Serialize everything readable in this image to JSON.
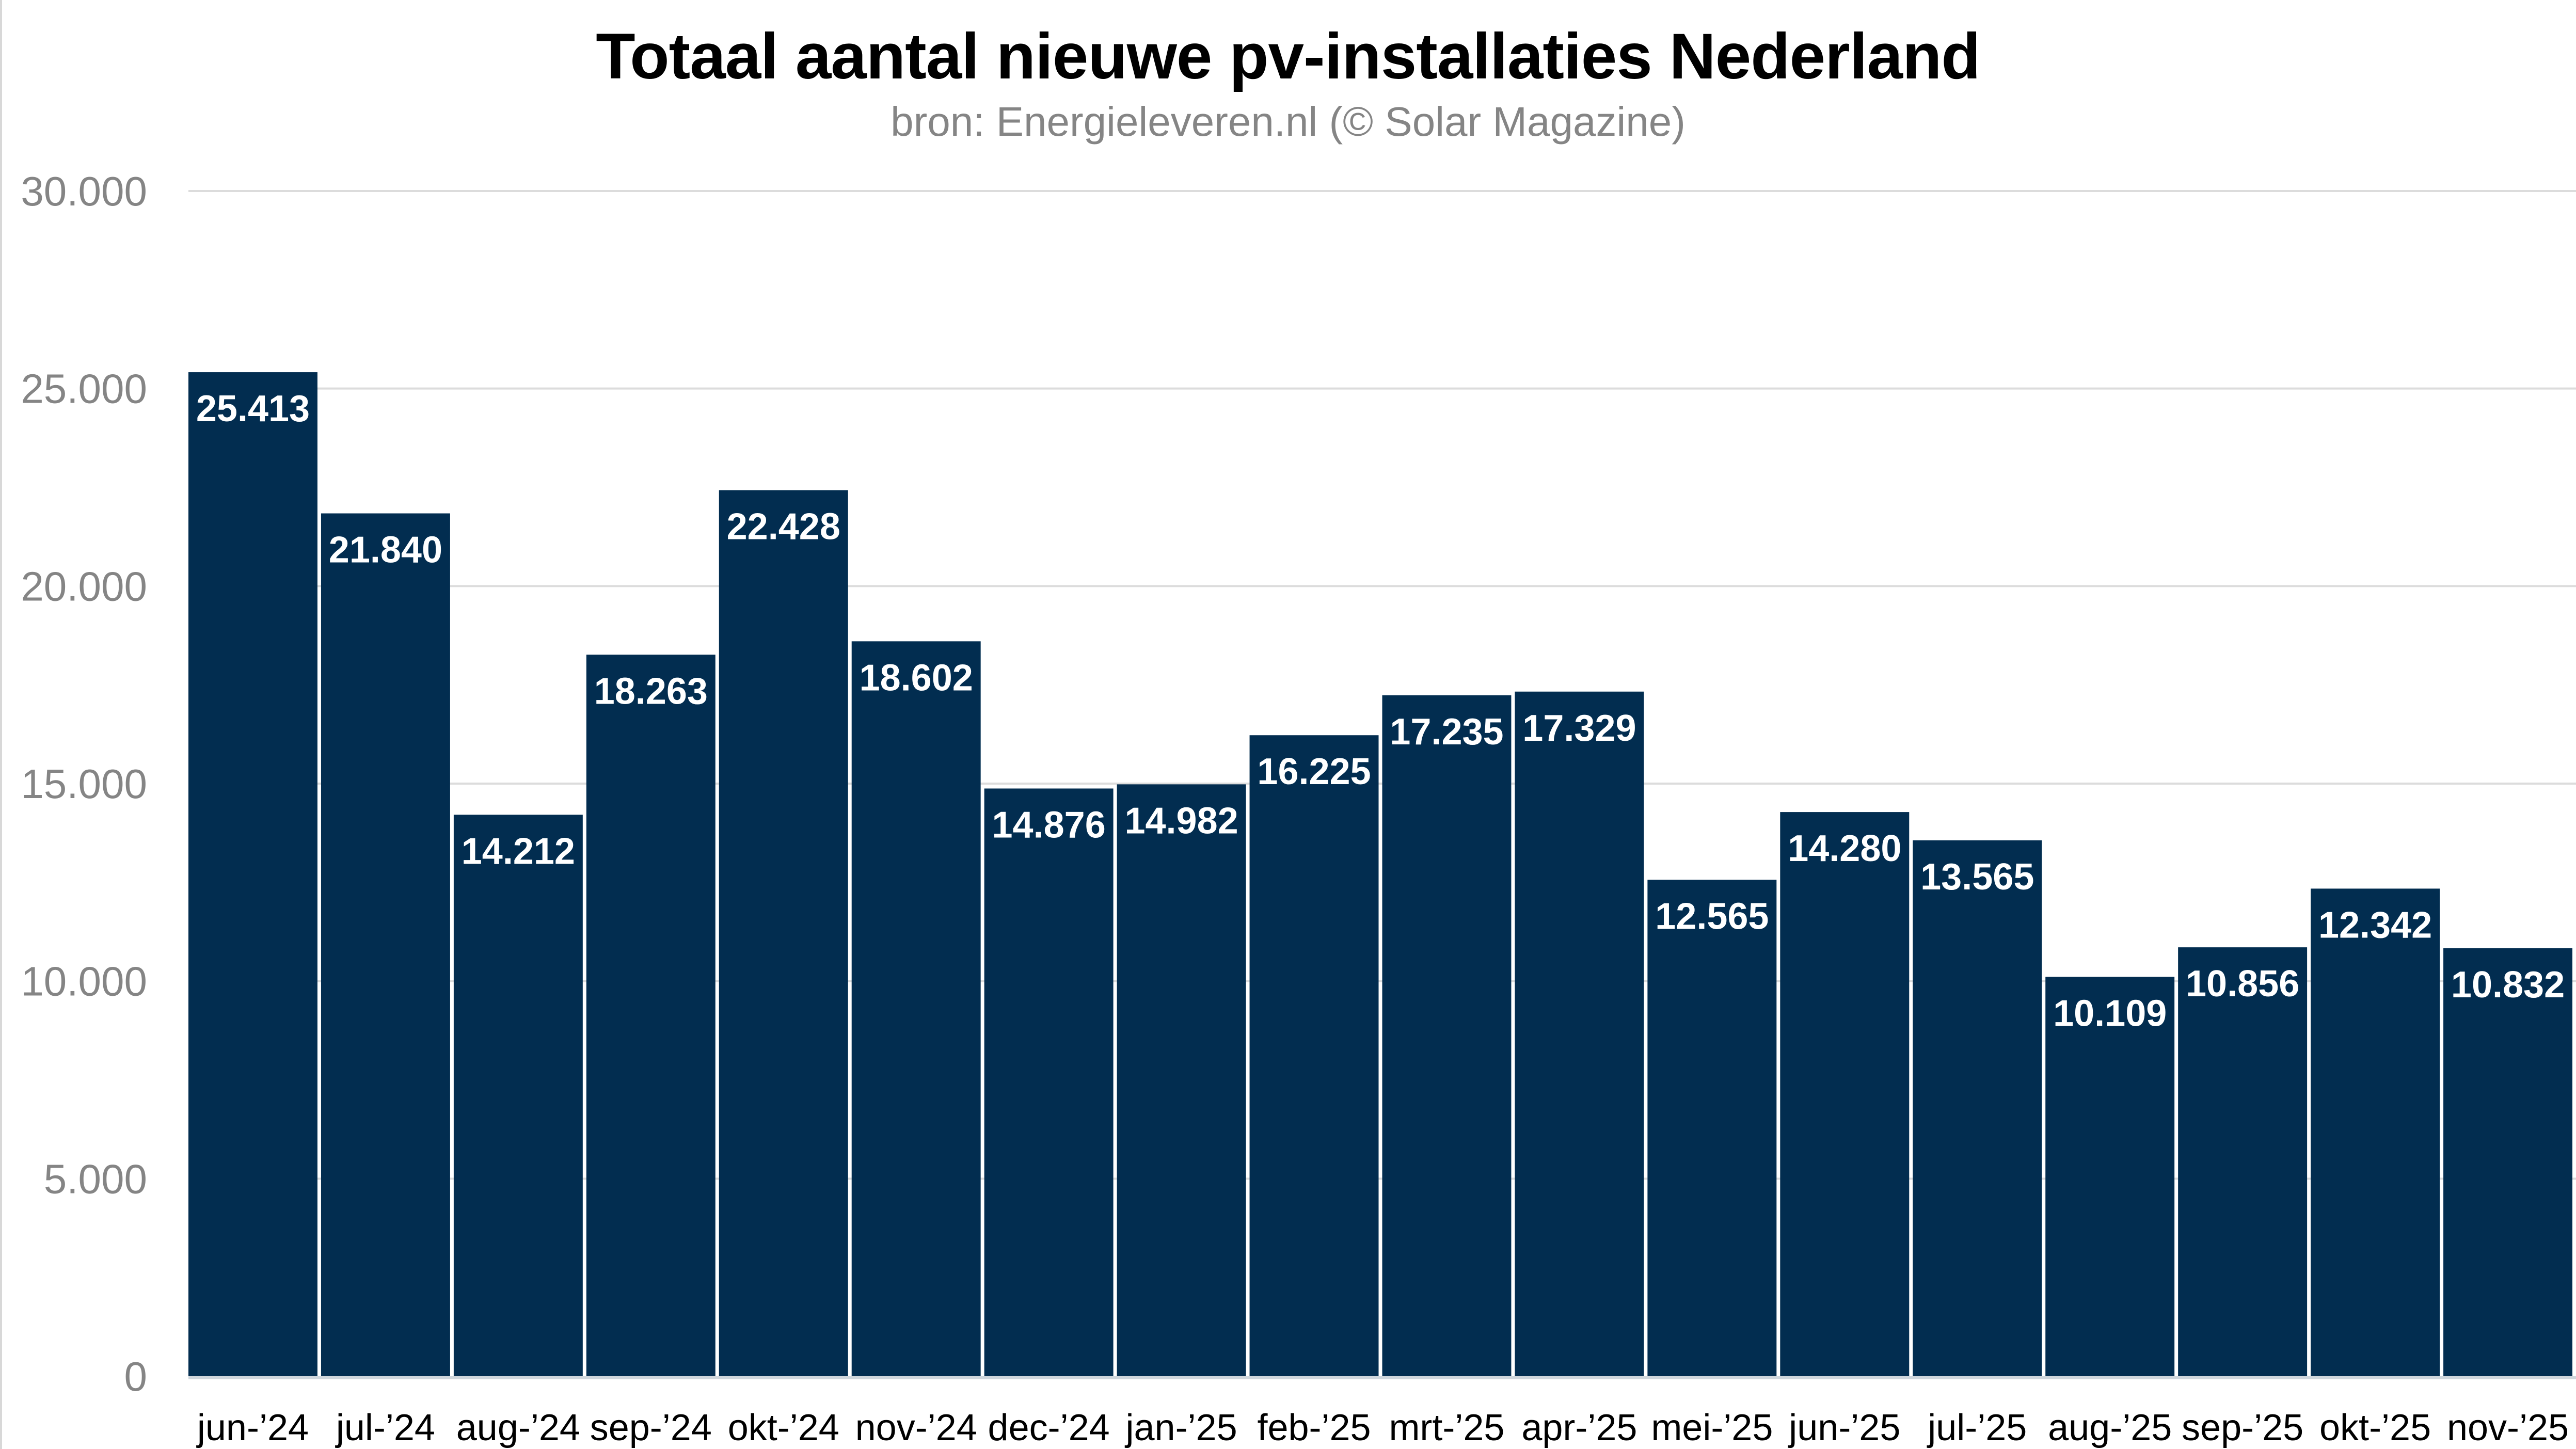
{
  "chart_data": {
    "type": "bar",
    "title": "Totaal aantal nieuwe pv-installaties Nederland",
    "subtitle": "bron: Energieleveren.nl (© Solar Magazine)",
    "xlabel": "",
    "ylabel": "",
    "ylim": [
      0,
      30000
    ],
    "yticks": [
      0,
      5000,
      10000,
      15000,
      20000,
      25000,
      30000
    ],
    "ytick_labels": [
      "0",
      "5.000",
      "10.000",
      "15.000",
      "20.000",
      "25.000",
      "30.000"
    ],
    "grid": true,
    "legend": "none",
    "bar_color": "#022d50",
    "categories": [
      "jun-’24",
      "jul-’24",
      "aug-’24",
      "sep-’24",
      "okt-’24",
      "nov-’24",
      "dec-’24",
      "jan-’25",
      "feb-’25",
      "mrt-’25",
      "apr-’25",
      "mei-’25",
      "jun-’25",
      "jul-’25",
      "aug-’25",
      "sep-’25",
      "okt-’25",
      "nov-’25"
    ],
    "values": [
      25413,
      21840,
      14212,
      18263,
      22428,
      18602,
      14876,
      14982,
      16225,
      17235,
      17329,
      12565,
      14280,
      13565,
      10109,
      10856,
      12342,
      10832
    ],
    "data_labels": [
      "25.413",
      "21.840",
      "14.212",
      "18.263",
      "22.428",
      "18.602",
      "14.876",
      "14.982",
      "16.225",
      "17.235",
      "17.329",
      "12.565",
      "14.280",
      "13.565",
      "10.109",
      "10.856",
      "12.342",
      "10.832"
    ]
  }
}
